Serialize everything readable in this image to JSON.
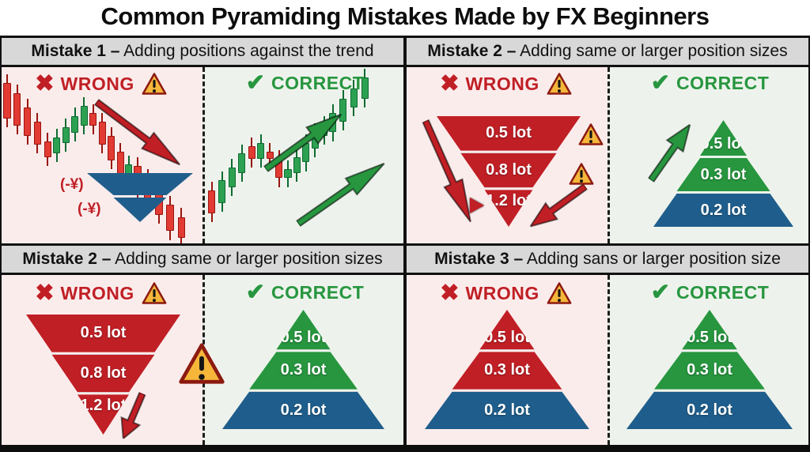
{
  "title": "Common Pyramiding Mistakes Made by FX Beginners",
  "labels": {
    "wrong": "WRONG",
    "correct": "CORRECT"
  },
  "headers": [
    {
      "bold": "Mistake 1 –",
      "rest": " Adding positions against the trend"
    },
    {
      "bold": "Mistake 2 –",
      "rest": " Adding same or larger position sizes"
    },
    {
      "bold": "Mistake 2 –",
      "rest": " Adding same or larger position sizes"
    },
    {
      "bold": "Mistake 3 –",
      "rest": " Adding sans or larger position size"
    }
  ],
  "colors": {
    "red": "#c01f25",
    "green": "#27963f",
    "blue": "#1f5e8c",
    "wrong_bg": "#fbecec",
    "correct_bg": "#edf3ec",
    "header_bg": "#d8d8d8",
    "warning_fill": "#f5b63a",
    "warning_stroke": "#8c1a10",
    "candle_red": "#e23b34",
    "candle_red_dark": "#99150f",
    "candle_green": "#2da152",
    "candle_green_dark": "#0d6b31"
  },
  "mistake1": {
    "loss_label_1": "(-¥)",
    "loss_label_2": "(-¥)",
    "wrong_candles": [
      [
        3.5,
        9,
        20,
        "r"
      ],
      [
        8.5,
        15,
        18,
        "r"
      ],
      [
        13.5,
        23,
        16,
        "r"
      ],
      [
        18.5,
        31,
        13,
        "r"
      ],
      [
        23.5,
        42,
        9,
        "r"
      ],
      [
        28,
        40,
        9,
        "g"
      ],
      [
        32.5,
        34,
        9,
        "g"
      ],
      [
        37,
        28,
        9,
        "g"
      ],
      [
        41.5,
        22,
        11,
        "g"
      ],
      [
        46,
        26,
        7,
        "r"
      ],
      [
        50.5,
        31,
        13,
        "r"
      ],
      [
        55,
        39,
        14,
        "r"
      ],
      [
        59.5,
        48,
        13,
        "r"
      ],
      [
        63.5,
        55,
        7,
        "g"
      ],
      [
        68,
        56,
        15,
        "r"
      ],
      [
        73,
        63,
        14,
        "r"
      ],
      [
        78.5,
        70,
        14,
        "r"
      ],
      [
        84,
        78,
        15,
        "r"
      ],
      [
        89.5,
        85,
        12,
        "r"
      ]
    ],
    "correct_candles": [
      [
        3.5,
        70,
        13,
        "r"
      ],
      [
        8.5,
        64,
        13,
        "g"
      ],
      [
        13.5,
        57,
        11,
        "g"
      ],
      [
        18.5,
        49,
        11,
        "g"
      ],
      [
        23.5,
        45,
        7,
        "r"
      ],
      [
        28,
        43,
        9,
        "g"
      ],
      [
        32.5,
        48,
        4,
        "r"
      ],
      [
        37,
        52,
        11,
        "r"
      ],
      [
        41.5,
        58,
        5,
        "g"
      ],
      [
        46,
        51,
        9,
        "g"
      ],
      [
        50.5,
        43,
        11,
        "g"
      ],
      [
        55,
        37,
        9,
        "g"
      ],
      [
        59.5,
        33,
        6,
        "g"
      ],
      [
        64,
        26,
        11,
        "g"
      ],
      [
        69,
        18,
        13,
        "g"
      ],
      [
        74.5,
        12,
        11,
        "g"
      ],
      [
        80,
        6,
        12,
        "g"
      ]
    ]
  },
  "pyramids": {
    "m1_loss": {
      "orientation": "inverted",
      "tiers": [
        {
          "label": "",
          "color": "blue"
        },
        {
          "label": "",
          "color": "blue"
        }
      ]
    },
    "m2a_wrong": {
      "orientation": "inverted",
      "tiers": [
        {
          "label": "0.5 lot",
          "color": "red"
        },
        {
          "label": "0.8 lot",
          "color": "red"
        },
        {
          "label": "1.2 lot",
          "color": "red"
        }
      ]
    },
    "m2a_correct": {
      "orientation": "upright",
      "tiers": [
        {
          "label": "0.5 lot",
          "color": "green"
        },
        {
          "label": "0.3 lot",
          "color": "green"
        },
        {
          "label": "0.2 lot",
          "color": "blue"
        }
      ]
    },
    "m2b_wrong": {
      "orientation": "inverted",
      "tiers": [
        {
          "label": "0.5 lot",
          "color": "red"
        },
        {
          "label": "0.8 lot",
          "color": "red"
        },
        {
          "label": "1.2 lot",
          "color": "red"
        }
      ]
    },
    "m2b_correct": {
      "orientation": "upright",
      "tiers": [
        {
          "label": "0.5 lot",
          "color": "green"
        },
        {
          "label": "0.3 lot",
          "color": "green"
        },
        {
          "label": "0.2 lot",
          "color": "blue"
        }
      ]
    },
    "m3_wrong": {
      "orientation": "upright",
      "tiers": [
        {
          "label": "0.5 lot",
          "color": "red"
        },
        {
          "label": "0.3 lot",
          "color": "red"
        },
        {
          "label": "0.2 lot",
          "color": "blue"
        }
      ]
    },
    "m3_correct": {
      "orientation": "upright",
      "tiers": [
        {
          "label": "0.5 lot",
          "color": "green"
        },
        {
          "label": "0.3 lot",
          "color": "green"
        },
        {
          "label": "0.2 lot",
          "color": "blue"
        }
      ]
    }
  }
}
